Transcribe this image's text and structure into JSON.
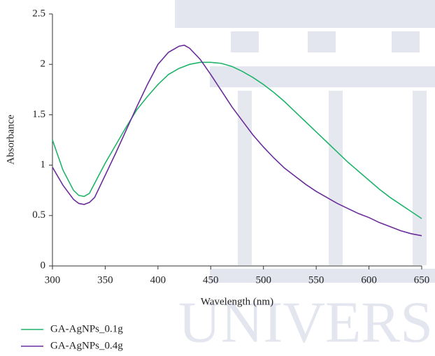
{
  "chart_data": {
    "type": "line",
    "x_label": "Wavelength (nm)",
    "y_label": "Absorbance",
    "x": [
      300,
      310,
      320,
      325,
      330,
      335,
      340,
      350,
      360,
      370,
      380,
      390,
      400,
      410,
      420,
      425,
      430,
      440,
      450,
      460,
      470,
      480,
      490,
      500,
      510,
      520,
      530,
      540,
      550,
      560,
      570,
      580,
      590,
      600,
      610,
      620,
      630,
      640,
      650
    ],
    "series": [
      {
        "name": "GA-AgNPs_0.1g",
        "color": "#1fb46a",
        "values": [
          1.25,
          0.95,
          0.75,
          0.7,
          0.69,
          0.72,
          0.82,
          1.02,
          1.2,
          1.38,
          1.55,
          1.68,
          1.8,
          1.9,
          1.96,
          1.98,
          2.0,
          2.02,
          2.02,
          2.01,
          1.98,
          1.93,
          1.87,
          1.8,
          1.72,
          1.63,
          1.53,
          1.43,
          1.33,
          1.23,
          1.13,
          1.03,
          0.94,
          0.85,
          0.76,
          0.68,
          0.61,
          0.54,
          0.47
        ]
      },
      {
        "name": "GA-AgNPs_0.4g",
        "color": "#6a2c9a",
        "values": [
          0.98,
          0.8,
          0.66,
          0.62,
          0.61,
          0.63,
          0.68,
          0.9,
          1.12,
          1.35,
          1.58,
          1.8,
          2.0,
          2.12,
          2.18,
          2.19,
          2.16,
          2.05,
          1.9,
          1.74,
          1.58,
          1.44,
          1.3,
          1.18,
          1.07,
          0.97,
          0.89,
          0.81,
          0.74,
          0.68,
          0.62,
          0.57,
          0.52,
          0.48,
          0.43,
          0.39,
          0.35,
          0.32,
          0.3
        ]
      }
    ],
    "xlim": [
      300,
      650
    ],
    "xticks": [
      300,
      350,
      400,
      450,
      500,
      550,
      600,
      650
    ],
    "ylim": [
      0,
      2.5
    ],
    "yticks": [
      0,
      0.5,
      1,
      1.5,
      2,
      2.5
    ],
    "grid": false,
    "legend": "bottom-left"
  }
}
